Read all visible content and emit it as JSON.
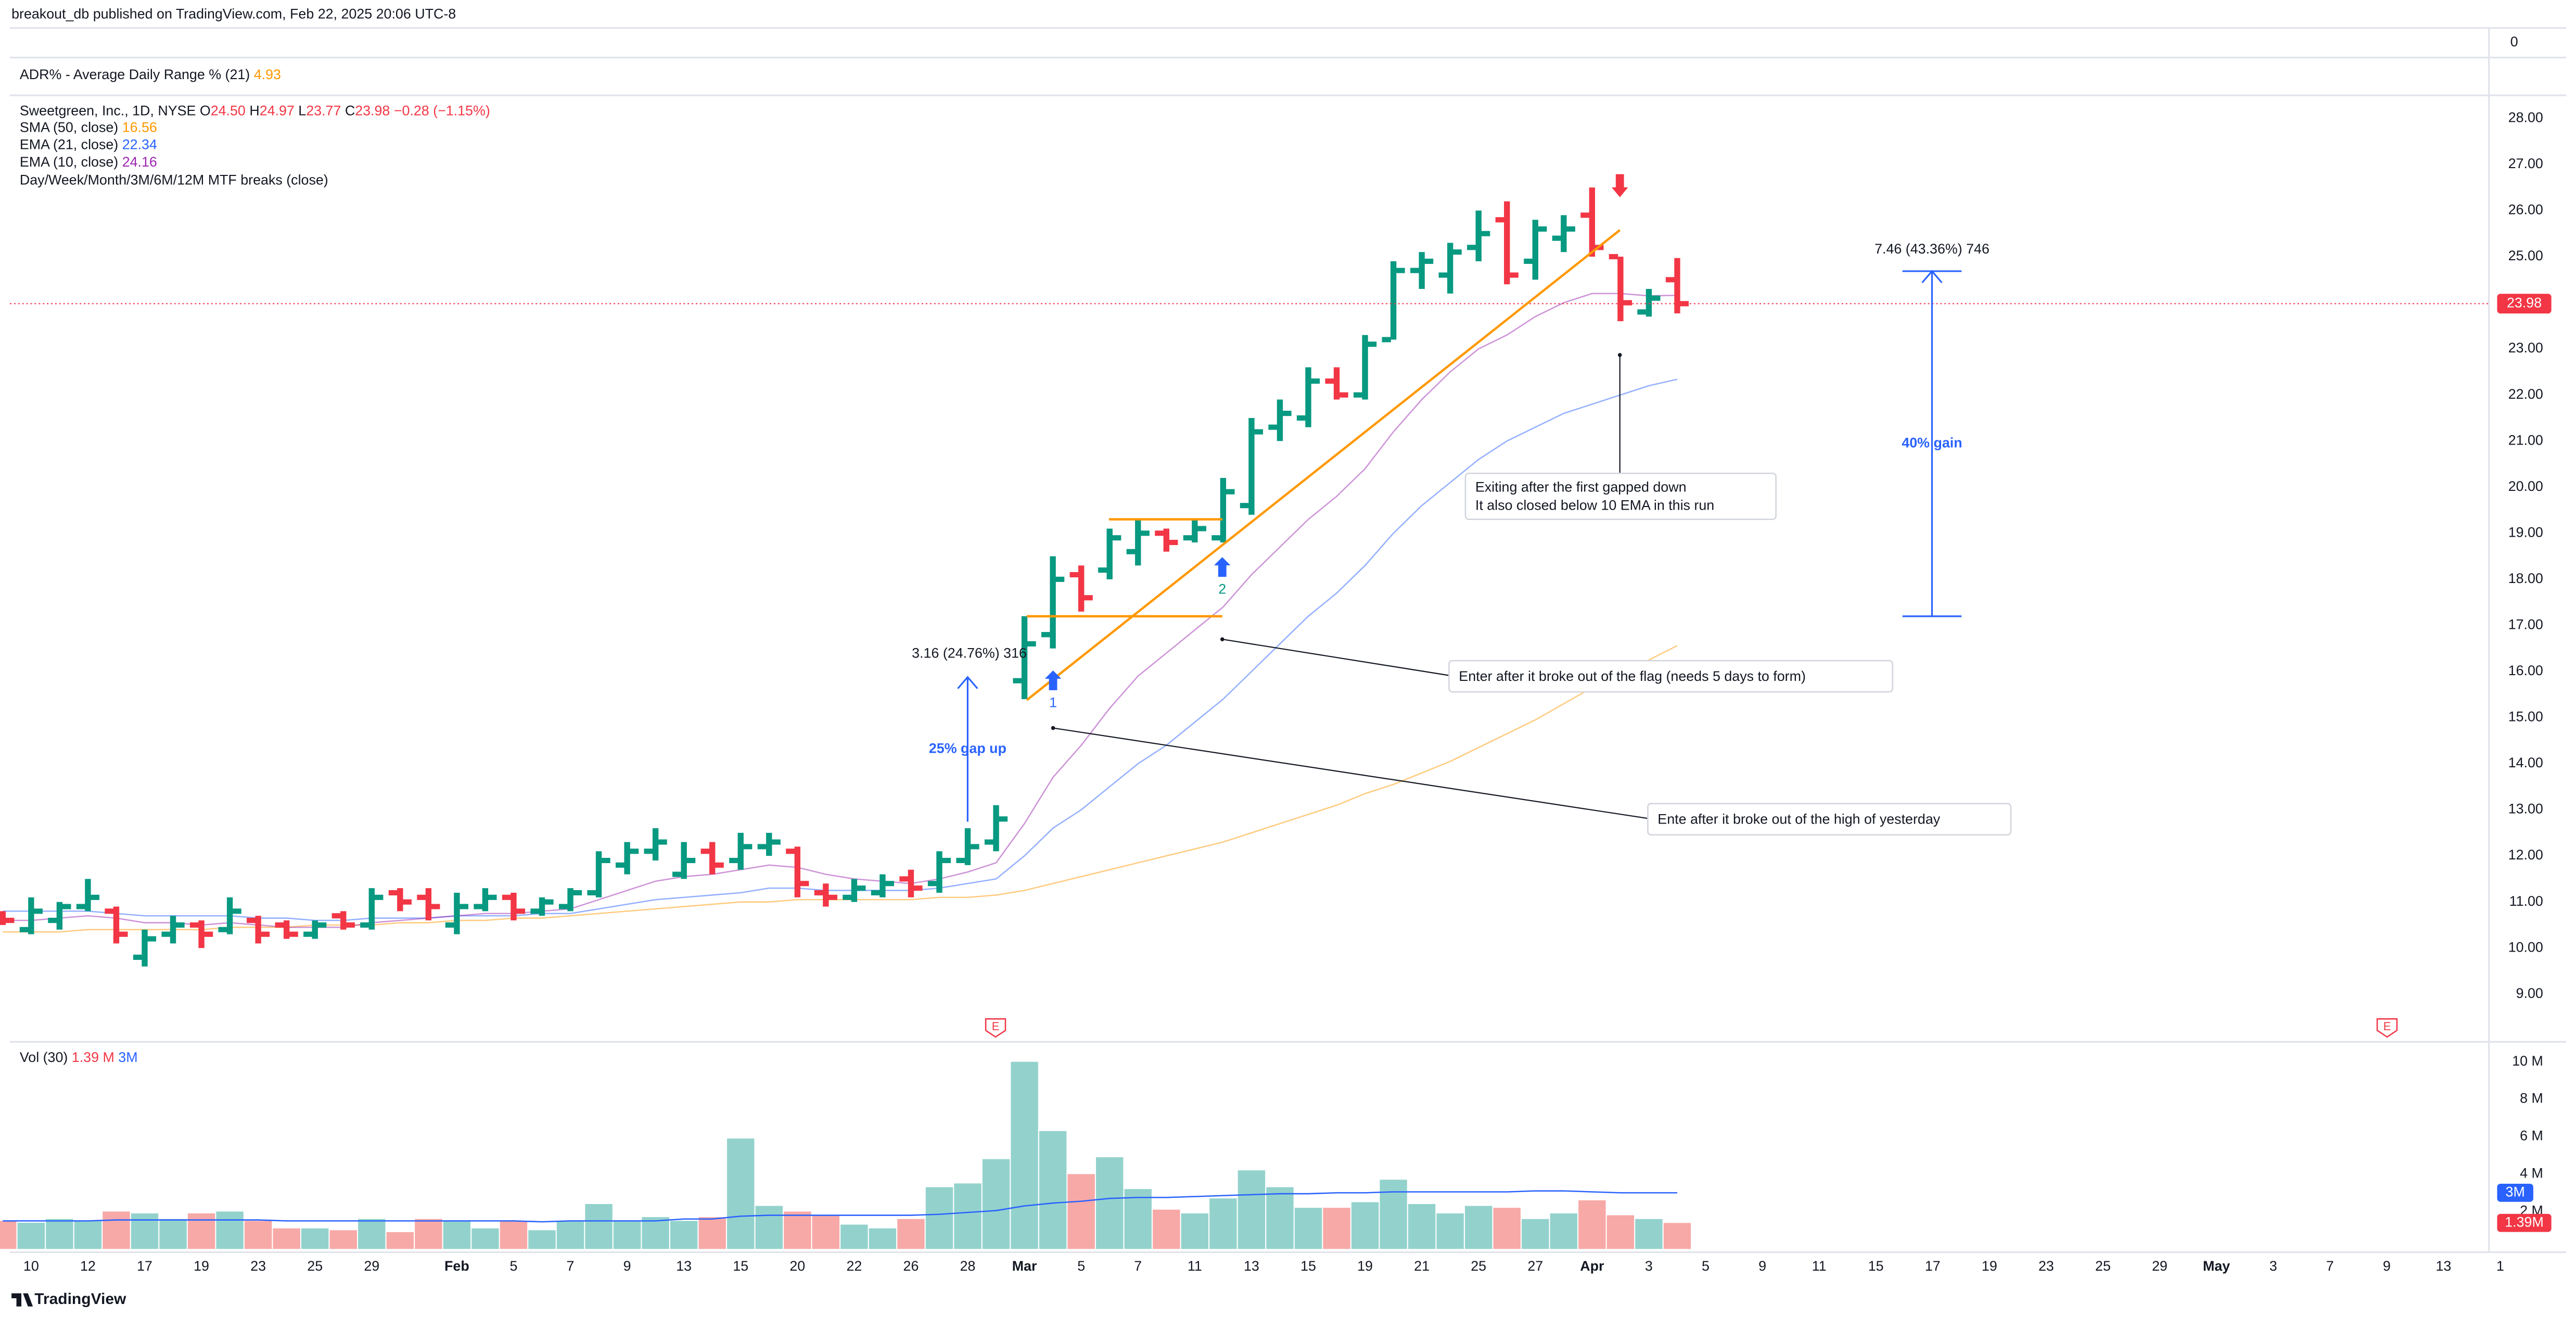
{
  "header": {
    "publisher": "breakout_db published on TradingView.com, Feb 22, 2025 20:06 UTC-8"
  },
  "adr": {
    "title": "ADR% - Average Daily Range % (21)",
    "value": "4.93",
    "yticks": [
      0
    ]
  },
  "legend": {
    "symbol": "Sweetgreen, Inc., 1D, NYSE",
    "o_label": "O",
    "open": "24.50",
    "h_label": "H",
    "high": "24.97",
    "l_label": "L",
    "low": "23.77",
    "c_label": "C",
    "close": "23.98",
    "change": "−0.28 (−1.15%)",
    "mtf": "Day/Week/Month/3M/6M/12M MTF breaks (close)"
  },
  "chart_data": [
    {
      "type": "ohlc",
      "open": [
        10.7,
        10.4,
        10.6,
        10.9,
        10.8,
        9.8,
        10.3,
        10.5,
        10.4,
        10.6,
        10.5,
        10.3,
        10.7,
        10.5,
        11.2,
        11.1,
        10.5,
        10.9,
        11.1,
        10.8,
        10.9,
        11.2,
        11.8,
        12.1,
        11.6,
        12.1,
        11.9,
        12.2,
        12.1,
        11.2,
        11.1,
        11.2,
        11.5,
        11.4,
        11.9,
        12.3,
        15.8,
        16.8,
        18.1,
        18.2,
        18.6,
        19.0,
        18.9,
        18.9,
        19.6,
        21.3,
        21.5,
        22.3,
        22.0,
        23.2,
        24.7,
        24.6,
        25.2,
        25.8,
        24.9,
        25.4,
        25.9,
        25.0,
        23.8,
        24.5
      ],
      "high": [
        10.8,
        11.1,
        11.0,
        11.5,
        10.9,
        10.4,
        10.7,
        10.6,
        11.1,
        10.7,
        10.6,
        10.6,
        10.8,
        11.3,
        11.3,
        11.3,
        11.2,
        11.3,
        11.2,
        11.1,
        11.3,
        12.1,
        12.3,
        12.6,
        12.3,
        12.3,
        12.5,
        12.5,
        12.2,
        11.4,
        11.5,
        11.6,
        11.7,
        12.1,
        12.6,
        13.1,
        17.2,
        18.5,
        18.3,
        19.1,
        19.3,
        19.1,
        19.3,
        20.2,
        21.5,
        21.9,
        22.6,
        22.6,
        23.3,
        24.9,
        25.1,
        25.3,
        26.0,
        26.2,
        25.8,
        25.9,
        26.5,
        25.0,
        24.3,
        24.97
      ],
      "low": [
        10.5,
        10.3,
        10.4,
        10.8,
        10.1,
        9.6,
        10.1,
        10.0,
        10.3,
        10.1,
        10.2,
        10.2,
        10.4,
        10.4,
        10.8,
        10.6,
        10.3,
        10.8,
        10.6,
        10.7,
        10.8,
        11.1,
        11.6,
        11.9,
        11.5,
        11.6,
        11.7,
        12.0,
        11.1,
        10.9,
        11.0,
        11.1,
        11.1,
        11.2,
        11.8,
        12.1,
        15.4,
        16.5,
        17.3,
        18.0,
        18.3,
        18.6,
        18.8,
        18.8,
        19.4,
        21.0,
        21.3,
        21.9,
        21.9,
        23.2,
        24.3,
        24.2,
        24.9,
        24.4,
        24.5,
        25.1,
        25.0,
        23.6,
        23.7,
        23.77
      ],
      "close": [
        10.6,
        10.8,
        10.9,
        11.1,
        10.3,
        10.2,
        10.5,
        10.3,
        10.8,
        10.3,
        10.3,
        10.5,
        10.5,
        11.1,
        11.0,
        10.9,
        10.9,
        11.1,
        10.8,
        11.0,
        11.2,
        11.9,
        12.1,
        12.3,
        11.9,
        11.8,
        12.2,
        12.3,
        11.4,
        11.1,
        11.3,
        11.4,
        11.3,
        11.9,
        12.2,
        12.8,
        16.6,
        18.0,
        17.6,
        18.9,
        19.0,
        18.8,
        19.1,
        19.9,
        21.2,
        21.6,
        22.3,
        22.0,
        23.1,
        24.7,
        24.9,
        25.1,
        25.5,
        24.6,
        25.6,
        25.6,
        25.2,
        24.0,
        24.1,
        23.98
      ],
      "up_color": "#089981",
      "down_color": "#f23645",
      "series": [
        {
          "name": "SMA (50, close)",
          "color": "#ff9800",
          "values": [
            10.35,
            10.35,
            10.35,
            10.4,
            10.4,
            10.4,
            10.4,
            10.4,
            10.45,
            10.45,
            10.45,
            10.5,
            10.5,
            10.5,
            10.55,
            10.55,
            10.6,
            10.6,
            10.65,
            10.65,
            10.7,
            10.75,
            10.8,
            10.85,
            10.9,
            10.95,
            11.0,
            11.0,
            11.05,
            11.05,
            11.05,
            11.05,
            11.05,
            11.1,
            11.1,
            11.15,
            11.25,
            11.4,
            11.55,
            11.7,
            11.85,
            12.0,
            12.15,
            12.3,
            12.5,
            12.7,
            12.9,
            13.1,
            13.35,
            13.55,
            13.8,
            14.05,
            14.35,
            14.65,
            14.95,
            15.3,
            15.65,
            15.95,
            16.25,
            16.56
          ]
        },
        {
          "name": "EMA (21, close)",
          "color": "#2962ff",
          "values": [
            10.8,
            10.8,
            10.8,
            10.8,
            10.75,
            10.7,
            10.7,
            10.7,
            10.7,
            10.65,
            10.65,
            10.6,
            10.6,
            10.65,
            10.65,
            10.65,
            10.7,
            10.7,
            10.7,
            10.75,
            10.75,
            10.85,
            10.95,
            11.05,
            11.1,
            11.15,
            11.2,
            11.3,
            11.3,
            11.25,
            11.25,
            11.25,
            11.25,
            11.3,
            11.4,
            11.5,
            12.0,
            12.6,
            13.0,
            13.5,
            14.0,
            14.4,
            14.9,
            15.4,
            16.0,
            16.6,
            17.2,
            17.7,
            18.3,
            19.0,
            19.6,
            20.1,
            20.6,
            21.0,
            21.3,
            21.6,
            21.8,
            22.0,
            22.2,
            22.34
          ]
        },
        {
          "name": "EMA (10, close)",
          "color": "#9c27b0",
          "values": [
            10.6,
            10.6,
            10.65,
            10.7,
            10.65,
            10.55,
            10.55,
            10.5,
            10.55,
            10.5,
            10.45,
            10.45,
            10.45,
            10.55,
            10.6,
            10.65,
            10.7,
            10.75,
            10.75,
            10.8,
            10.85,
            11.05,
            11.25,
            11.45,
            11.55,
            11.6,
            11.7,
            11.8,
            11.75,
            11.6,
            11.5,
            11.45,
            11.4,
            11.5,
            11.65,
            11.85,
            12.7,
            13.7,
            14.4,
            15.2,
            15.9,
            16.4,
            16.9,
            17.4,
            18.1,
            18.7,
            19.3,
            19.8,
            20.4,
            21.2,
            21.9,
            22.5,
            23.0,
            23.3,
            23.7,
            24.0,
            24.2,
            24.2,
            24.15,
            24.16
          ]
        }
      ],
      "ylim": [
        8,
        28.5
      ],
      "yticks": [
        {
          "value": 9,
          "label": "9.00"
        },
        {
          "value": 10,
          "label": "10.00"
        },
        {
          "value": 11,
          "label": "11.00"
        },
        {
          "value": 12,
          "label": "12.00"
        },
        {
          "value": 13,
          "label": "13.00"
        },
        {
          "value": 14,
          "label": "14.00"
        },
        {
          "value": 15,
          "label": "15.00"
        },
        {
          "value": 16,
          "label": "16.00"
        },
        {
          "value": 17,
          "label": "17.00"
        },
        {
          "value": 18,
          "label": "18.00"
        },
        {
          "value": 19,
          "label": "19.00"
        },
        {
          "value": 20,
          "label": "20.00"
        },
        {
          "value": 21,
          "label": "21.00"
        },
        {
          "value": 22,
          "label": "22.00"
        },
        {
          "value": 23,
          "label": "23.00"
        },
        {
          "value": 24,
          "label": "24.00"
        },
        {
          "value": 25,
          "label": "25.00"
        },
        {
          "value": 26,
          "label": "26.00"
        },
        {
          "value": 27,
          "label": "27.00"
        },
        {
          "value": 28,
          "label": "28.00"
        }
      ],
      "xlim": [
        0.25,
        87.6
      ],
      "xticks": [
        {
          "value": 1,
          "label": "10"
        },
        {
          "value": 3,
          "label": "12"
        },
        {
          "value": 5,
          "label": "17"
        },
        {
          "value": 7,
          "label": "19"
        },
        {
          "value": 9,
          "label": "23"
        },
        {
          "value": 11,
          "label": "25"
        },
        {
          "value": 13,
          "label": "29"
        },
        {
          "value": 16,
          "label": "Feb"
        },
        {
          "value": 18,
          "label": "5"
        },
        {
          "value": 20,
          "label": "7"
        },
        {
          "value": 22,
          "label": "9"
        },
        {
          "value": 24,
          "label": "13"
        },
        {
          "value": 26,
          "label": "15"
        },
        {
          "value": 28,
          "label": "20"
        },
        {
          "value": 30,
          "label": "22"
        },
        {
          "value": 32,
          "label": "26"
        },
        {
          "value": 34,
          "label": "28"
        },
        {
          "value": 36,
          "label": "Mar"
        },
        {
          "value": 38,
          "label": "5"
        },
        {
          "value": 40,
          "label": "7"
        },
        {
          "value": 42,
          "label": "11"
        },
        {
          "value": 44,
          "label": "13"
        },
        {
          "value": 46,
          "label": "15"
        },
        {
          "value": 48,
          "label": "19"
        },
        {
          "value": 50,
          "label": "21"
        },
        {
          "value": 52,
          "label": "25"
        },
        {
          "value": 54,
          "label": "27"
        },
        {
          "value": 56,
          "label": "Apr"
        },
        {
          "value": 58,
          "label": "3"
        },
        {
          "value": 60,
          "label": "5"
        },
        {
          "value": 62,
          "label": "9"
        },
        {
          "value": 64,
          "label": "11"
        },
        {
          "value": 66,
          "label": "15"
        },
        {
          "value": 68,
          "label": "17"
        },
        {
          "value": 70,
          "label": "19"
        },
        {
          "value": 72,
          "label": "23"
        },
        {
          "value": 74,
          "label": "25"
        },
        {
          "value": 76,
          "label": "29"
        },
        {
          "value": 78,
          "label": "May"
        },
        {
          "value": 80,
          "label": "3"
        },
        {
          "value": 82,
          "label": "7"
        },
        {
          "value": 84,
          "label": "9"
        },
        {
          "value": 86,
          "label": "13"
        },
        {
          "value": 88,
          "label": "1"
        }
      ]
    },
    {
      "type": "bar",
      "title": "Vol (30)",
      "values": [
        1.5,
        1.4,
        1.6,
        1.5,
        2.0,
        1.9,
        1.6,
        1.9,
        2.0,
        1.5,
        1.1,
        1.1,
        1.0,
        1.6,
        0.9,
        1.6,
        1.5,
        1.1,
        1.5,
        1.0,
        1.5,
        2.4,
        1.5,
        1.7,
        1.5,
        1.7,
        5.9,
        2.3,
        2.0,
        1.8,
        1.3,
        1.1,
        1.6,
        3.3,
        3.5,
        4.8,
        10.0,
        6.3,
        4.0,
        4.9,
        3.2,
        2.1,
        1.9,
        2.7,
        4.2,
        3.3,
        2.2,
        2.2,
        2.5,
        3.7,
        2.4,
        1.9,
        2.3,
        2.2,
        1.6,
        1.9,
        2.6,
        1.8,
        1.6,
        1.39
      ],
      "up_color": "#93d2cc",
      "down_color": "#f7a9a7",
      "ma": {
        "color": "#2962ff",
        "values": [
          1.5,
          1.5,
          1.5,
          1.5,
          1.55,
          1.55,
          1.55,
          1.55,
          1.55,
          1.55,
          1.5,
          1.5,
          1.5,
          1.5,
          1.5,
          1.5,
          1.5,
          1.5,
          1.5,
          1.45,
          1.5,
          1.5,
          1.5,
          1.5,
          1.6,
          1.6,
          1.75,
          1.8,
          1.8,
          1.8,
          1.8,
          1.8,
          1.8,
          1.85,
          1.95,
          2.05,
          2.3,
          2.45,
          2.55,
          2.7,
          2.75,
          2.75,
          2.8,
          2.85,
          2.9,
          2.95,
          2.95,
          3.0,
          3.0,
          3.05,
          3.05,
          3.05,
          3.05,
          3.05,
          3.1,
          3.1,
          3.05,
          3.0,
          3.0,
          3.0
        ]
      },
      "legend_volume": "1.39 M",
      "legend_ma": "3M",
      "tag_volume": "1.39M",
      "tag_ma": "3M",
      "ylim": [
        0,
        10.8
      ],
      "yticks": [
        {
          "value": 2,
          "label": "2 M"
        },
        {
          "value": 4,
          "label": "4 M"
        },
        {
          "value": 6,
          "label": "6 M"
        },
        {
          "value": 8,
          "label": "8 M"
        },
        {
          "value": 10,
          "label": "10 M"
        }
      ]
    }
  ],
  "annotations": {
    "exit_note": [
      "Exiting after the first gapped down",
      "It also closed below 10 EMA in this run"
    ],
    "flag_note": "Enter after it broke out of the flag (needs 5 days to form)",
    "high_note": "Ente after it broke out of the high of yesterday",
    "measure_gain": "7.46 (43.36%) 746",
    "gain_label": "40% gain",
    "measure_gap": "3.16 (24.76%) 316",
    "gap_label": "25% gap up",
    "entry_1": "1",
    "entry_2": "2"
  },
  "earnings": [
    "E",
    "E"
  ],
  "footer": {
    "brand": "TradingView"
  }
}
